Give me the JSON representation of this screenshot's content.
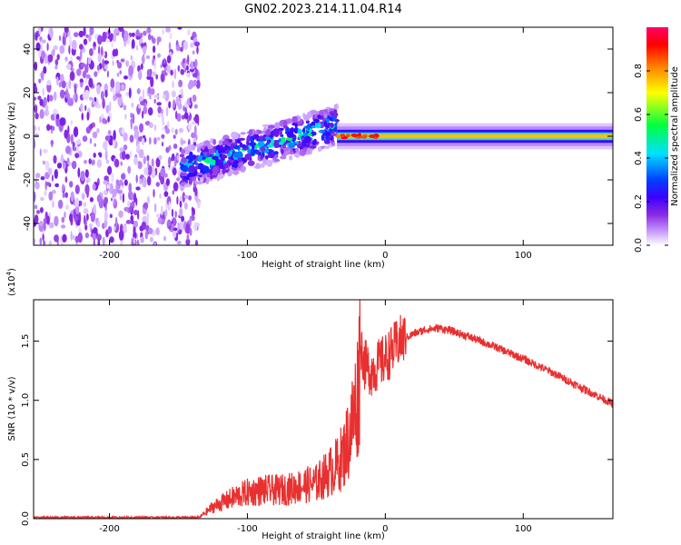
{
  "figure_title": "GN02.2023.214.11.04.R14",
  "chart_data": [
    {
      "type": "heatmap",
      "title": "GN02.2023.214.11.04.R14",
      "xlabel": "Height of straight line (km)",
      "ylabel": "Frequency (Hz)",
      "xlim": [
        -255,
        165
      ],
      "ylim": [
        -50,
        50
      ],
      "xticks": [
        -200,
        -100,
        0,
        100
      ],
      "xtick_labels": [
        "-200",
        "-100",
        "0",
        "100"
      ],
      "yticks": [
        -40,
        -20,
        0,
        20,
        40
      ],
      "ytick_labels": [
        "-40",
        "-20",
        "0",
        "20",
        "40"
      ],
      "grid": false,
      "colorbar": {
        "label": "Normalized spectral amplitude",
        "range": [
          0,
          1
        ],
        "ticks": [
          0.0,
          0.2,
          0.4,
          0.6,
          0.8
        ],
        "tick_labels": [
          "0.0",
          "0.2",
          "0.4",
          "0.6",
          "0.8"
        ],
        "colormap": [
          "#ffffff",
          "#c9a0ff",
          "#8a2be2",
          "#3d00ff",
          "#0040ff",
          "#00e0ff",
          "#00ff40",
          "#ffff00",
          "#ff8000",
          "#ff0000",
          "#ff0066"
        ]
      },
      "regions": [
        {
          "name": "noise",
          "x_range": [
            -255,
            -145
          ],
          "freq_range": [
            -50,
            50
          ],
          "amplitude": 0.12
        },
        {
          "name": "transition",
          "x_range": [
            -148,
            -35
          ],
          "freq_center_start": -15,
          "freq_center_end": 5,
          "amplitude": 0.4
        },
        {
          "name": "carrier",
          "x_range": [
            -35,
            165
          ],
          "freq_center": 0,
          "amplitude": 0.75
        },
        {
          "name": "peak",
          "x_range": [
            -35,
            -5
          ],
          "freq_center": 0,
          "amplitude": 0.95
        }
      ]
    },
    {
      "type": "line",
      "xlabel": "Height of straight line (km)",
      "ylabel": "SNR (10 * v/v)",
      "y_multiplier_label": "(x10",
      "y_multiplier_exp": "4",
      "y_multiplier_suffix": ")",
      "xlim": [
        -255,
        165
      ],
      "ylim": [
        0,
        1.85
      ],
      "xticks": [
        -200,
        -100,
        0,
        100
      ],
      "xtick_labels": [
        "-200",
        "-100",
        "0",
        "100"
      ],
      "yticks": [
        0.0,
        0.5,
        1.0,
        1.5
      ],
      "ytick_labels": [
        "0.0",
        "0.5",
        "1.0",
        "1.5"
      ],
      "grid": false,
      "series": [
        {
          "name": "SNR",
          "color": "#e83030",
          "x": [
            -255,
            -200,
            -150,
            -135,
            -125,
            -110,
            -100,
            -90,
            -80,
            -70,
            -60,
            -50,
            -45,
            -40,
            -35,
            -30,
            -25,
            -20,
            -18,
            -15,
            -10,
            -5,
            0,
            5,
            10,
            20,
            30,
            40,
            50,
            60,
            80,
            100,
            120,
            140,
            165
          ],
          "values": [
            0.01,
            0.01,
            0.01,
            0.01,
            0.1,
            0.18,
            0.22,
            0.24,
            0.24,
            0.25,
            0.28,
            0.3,
            0.35,
            0.4,
            0.45,
            0.55,
            0.75,
            1.05,
            1.5,
            1.3,
            1.25,
            1.3,
            1.35,
            1.42,
            1.5,
            1.56,
            1.6,
            1.61,
            1.58,
            1.54,
            1.45,
            1.35,
            1.24,
            1.12,
            0.97
          ]
        }
      ]
    }
  ]
}
